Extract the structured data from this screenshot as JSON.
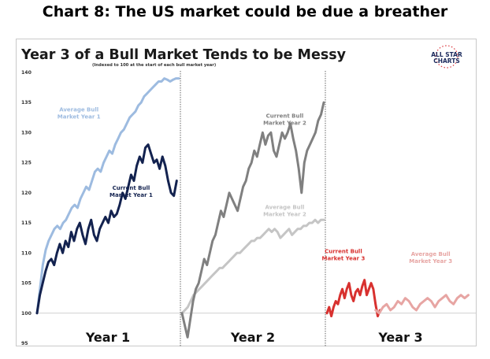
{
  "page": {
    "headline": "Chart 8: The US market could be due a breather"
  },
  "logo": {
    "line1": "ALL STAR",
    "line2": "CHARTS",
    "color": "#1b2a5c",
    "accent": "#d9343a"
  },
  "chart_data": {
    "type": "line",
    "title": "Year 3 of a Bull Market Tends to be Messy",
    "subtitle": "(Indexed to 100 at the start of each bull market year)",
    "ylim": [
      95,
      140
    ],
    "yticks": [
      95,
      100,
      105,
      110,
      115,
      120,
      125,
      130,
      135,
      140
    ],
    "baseline": 100,
    "panels": [
      {
        "label": "Year 1",
        "series": [
          {
            "name": "Average Bull Market Year 1",
            "label_lines": [
              "Average Bull",
              "Market Year 1"
            ],
            "color": "#9dbbe0",
            "values": [
              100,
              104,
              108,
              110.5,
              112,
              113,
              114,
              114.5,
              114,
              115,
              115.5,
              116.5,
              117.5,
              118,
              117.5,
              119,
              120,
              121,
              120.5,
              122,
              123.5,
              124,
              123.5,
              125,
              126,
              127,
              126.5,
              128,
              129,
              130,
              130.5,
              131.5,
              132.5,
              133,
              133.5,
              134.5,
              135,
              136,
              136.5,
              137,
              137.5,
              138,
              138.5,
              138.5,
              139,
              138.8,
              138.5,
              138.8,
              139,
              139
            ]
          },
          {
            "name": "Current Bull Market Year 1",
            "label_lines": [
              "Current Bull",
              "Market Year 1"
            ],
            "color": "#13224f",
            "values": [
              100,
              103,
              105,
              107,
              108.5,
              109,
              108,
              110,
              111.5,
              110,
              112,
              111,
              113.5,
              112,
              114,
              115,
              113,
              111.5,
              114,
              115.5,
              113,
              112,
              114,
              115,
              116,
              115,
              117,
              116,
              116.5,
              118,
              120,
              119,
              121,
              123,
              122,
              124.5,
              126,
              125,
              127.5,
              128,
              126.5,
              125,
              125.5,
              124,
              126,
              124.5,
              122,
              120,
              119.5,
              122
            ]
          }
        ]
      },
      {
        "label": "Year 2",
        "series": [
          {
            "name": "Average Bull Market Year 2",
            "label_lines": [
              "Average Bull",
              "Market Year 2"
            ],
            "color": "#c5c5c5",
            "values": [
              100,
              100.5,
              101,
              102,
              103,
              103.5,
              104,
              104.5,
              105,
              105.5,
              106,
              106.5,
              107,
              107.5,
              107.5,
              108,
              108.5,
              109,
              109.5,
              110,
              110,
              110.5,
              111,
              111.5,
              112,
              112,
              112.5,
              112.5,
              113,
              113.5,
              114,
              113.5,
              114,
              113.5,
              112.5,
              113,
              113.5,
              114,
              113,
              113.5,
              114,
              114,
              114.5,
              114.5,
              115,
              115,
              115.5,
              115,
              115.5,
              115.5
            ]
          },
          {
            "name": "Current Bull Market Year 2",
            "label_lines": [
              "Current Bull",
              "Market Year 2"
            ],
            "color": "#808080",
            "values": [
              100,
              98,
              96,
              99,
              102,
              104,
              105,
              107,
              109,
              108,
              110,
              112,
              113,
              115,
              117,
              116,
              118,
              120,
              119,
              118,
              117,
              119,
              121,
              122,
              124,
              125,
              127,
              126,
              128,
              130,
              128,
              129.5,
              130,
              127,
              126,
              128,
              130,
              129,
              130,
              131.5,
              129,
              127,
              124,
              120,
              125,
              127,
              128,
              129,
              130,
              132,
              133,
              135
            ]
          }
        ]
      },
      {
        "label": "Year 3",
        "series": [
          {
            "name": "Current Bull Market Year 3",
            "label_lines": [
              "Current Bull",
              "Market Year 3"
            ],
            "color": "#d8312f",
            "values": [
              100,
              101,
              99.5,
              101,
              102,
              101.5,
              103,
              104,
              102.5,
              104,
              105,
              103,
              102,
              103.5,
              104,
              103,
              104.5,
              105.5,
              103,
              104,
              105,
              104,
              101.5,
              99.5,
              100.5
            ]
          },
          {
            "name": "Average Bull Market Year 3",
            "label_lines": [
              "Average Bull",
              "Market Year 3"
            ],
            "color": "#e7a5a3",
            "values": [
              100.5,
              100,
              101,
              101.5,
              100.5,
              101,
              102,
              101.5,
              102.5,
              102,
              101,
              100.5,
              101.5,
              102,
              102.5,
              102,
              101,
              102,
              102.5,
              103,
              102,
              101.5,
              102.5,
              103,
              102.5,
              103
            ]
          }
        ]
      }
    ]
  }
}
